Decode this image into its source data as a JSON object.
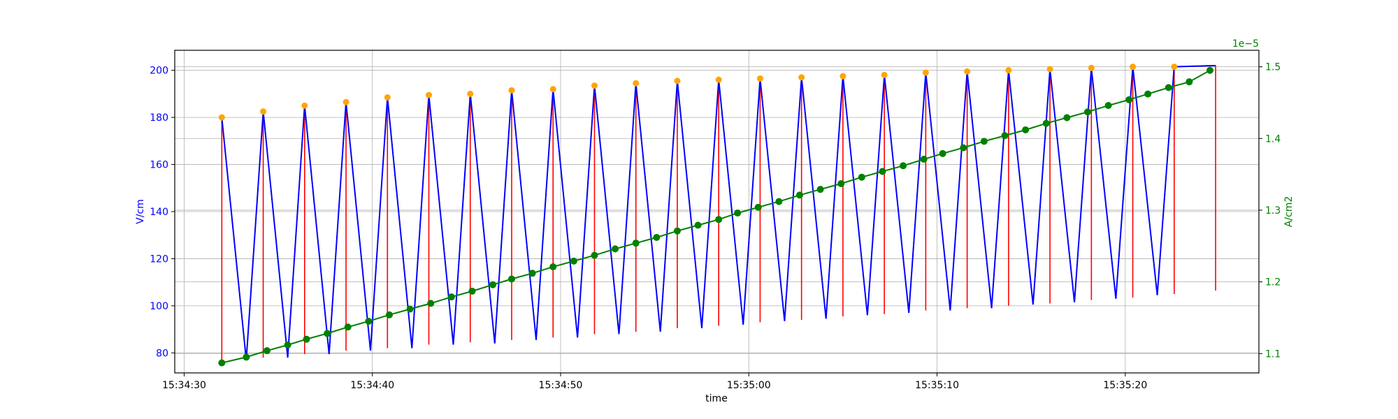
{
  "chart_data": {
    "type": "line",
    "xlabel": "time",
    "ylabel_left": "V/cm",
    "ylabel_right": "A/cm2",
    "right_offset_text": "1e−5",
    "x_ticks": [
      "15:34:30",
      "15:34:40",
      "15:34:50",
      "15:35:00",
      "15:35:10",
      "15:35:20"
    ],
    "x_tick_seconds": [
      0,
      10,
      20,
      30,
      40,
      50
    ],
    "x_range": [
      -0.5,
      57.1
    ],
    "y_left_ticks": [
      "80",
      "100",
      "120",
      "140",
      "160",
      "180",
      "200"
    ],
    "y_left_tick_values": [
      80,
      100,
      120,
      140,
      160,
      180,
      200
    ],
    "y_left_range": [
      71.5,
      208.5
    ],
    "y_right_ticks": [
      "1.1",
      "1.2",
      "1.3",
      "1.4",
      "1.5"
    ],
    "y_right_tick_values": [
      1.1,
      1.2,
      1.3,
      1.4,
      1.5
    ],
    "y_right_range": [
      1.073,
      1.523
    ],
    "grid": true,
    "colors": {
      "voltage": "#0000ff",
      "range": "#ff0000",
      "peak": "#ffa500",
      "current": "#008000"
    },
    "peaks": {
      "x": [
        2.0,
        4.2,
        6.4,
        8.6,
        10.8,
        13.0,
        15.2,
        17.4,
        19.6,
        21.8,
        24.0,
        26.2,
        28.4,
        30.6,
        32.8,
        35.0,
        37.2,
        39.4,
        41.6,
        43.8,
        46.0,
        48.2,
        50.4,
        52.6
      ],
      "y": [
        180,
        182.5,
        185,
        186.5,
        188.5,
        189.5,
        190,
        191.5,
        192,
        193.5,
        194.5,
        195.5,
        196,
        196.5,
        197,
        197.5,
        198,
        199,
        199.5,
        200,
        200.5,
        201,
        201.5,
        201.5
      ]
    },
    "troughs": {
      "x": [
        3.3,
        5.5,
        7.7,
        9.9,
        12.1,
        14.3,
        16.5,
        18.7,
        20.9,
        23.1,
        25.3,
        27.5,
        29.7,
        31.9,
        34.1,
        36.3,
        38.5,
        40.7,
        42.9,
        45.1,
        47.3,
        49.5,
        51.7
      ],
      "y": [
        77,
        78,
        79.5,
        81,
        82,
        83.5,
        84,
        85.5,
        86.5,
        88,
        89,
        90.5,
        92,
        93.5,
        94.5,
        96,
        97,
        98,
        99,
        100.5,
        101.5,
        103,
        104.5
      ]
    },
    "ranges": {
      "x": [
        2.0,
        4.2,
        6.4,
        8.6,
        10.8,
        13.0,
        15.2,
        17.4,
        19.6,
        21.8,
        24.0,
        26.2,
        28.4,
        30.6,
        32.8,
        35.0,
        37.2,
        39.4,
        41.6,
        43.8,
        46.0,
        48.2,
        50.4,
        52.6,
        54.8
      ],
      "low": [
        77,
        78,
        79.5,
        81,
        82,
        83.5,
        84.5,
        85.5,
        86.5,
        88,
        89,
        90.5,
        91.5,
        93,
        94,
        95.5,
        96.5,
        98,
        99,
        100,
        101,
        102.5,
        103.5,
        105,
        106.5
      ],
      "high": [
        180,
        182,
        184.5,
        186,
        188,
        189,
        189.5,
        191,
        191.5,
        193,
        194,
        195,
        195.5,
        196,
        196.5,
        197,
        197.5,
        198.5,
        199,
        199.5,
        200,
        200.5,
        201,
        201,
        202
      ]
    },
    "current": {
      "x": [
        2.0,
        3.3,
        4.4,
        5.5,
        6.5,
        7.6,
        8.7,
        9.8,
        10.9,
        12.0,
        13.1,
        14.2,
        15.3,
        16.4,
        17.4,
        18.5,
        19.6,
        20.7,
        21.8,
        22.9,
        24.0,
        25.1,
        26.2,
        27.3,
        28.4,
        29.4,
        30.5,
        31.6,
        32.7,
        33.8,
        34.9,
        36.0,
        37.1,
        38.2,
        39.3,
        40.3,
        41.4,
        42.5,
        43.6,
        44.7,
        45.8,
        46.9,
        48.0,
        49.1,
        50.2,
        51.2,
        52.3,
        53.4,
        54.5
      ],
      "y": [
        1.087,
        1.095,
        1.104,
        1.112,
        1.12,
        1.128,
        1.137,
        1.145,
        1.154,
        1.162,
        1.17,
        1.179,
        1.187,
        1.196,
        1.204,
        1.212,
        1.221,
        1.229,
        1.237,
        1.246,
        1.254,
        1.262,
        1.271,
        1.279,
        1.287,
        1.296,
        1.304,
        1.312,
        1.321,
        1.329,
        1.337,
        1.346,
        1.354,
        1.362,
        1.371,
        1.379,
        1.387,
        1.396,
        1.404,
        1.412,
        1.421,
        1.429,
        1.437,
        1.446,
        1.454,
        1.462,
        1.471,
        1.479,
        1.495
      ]
    }
  }
}
